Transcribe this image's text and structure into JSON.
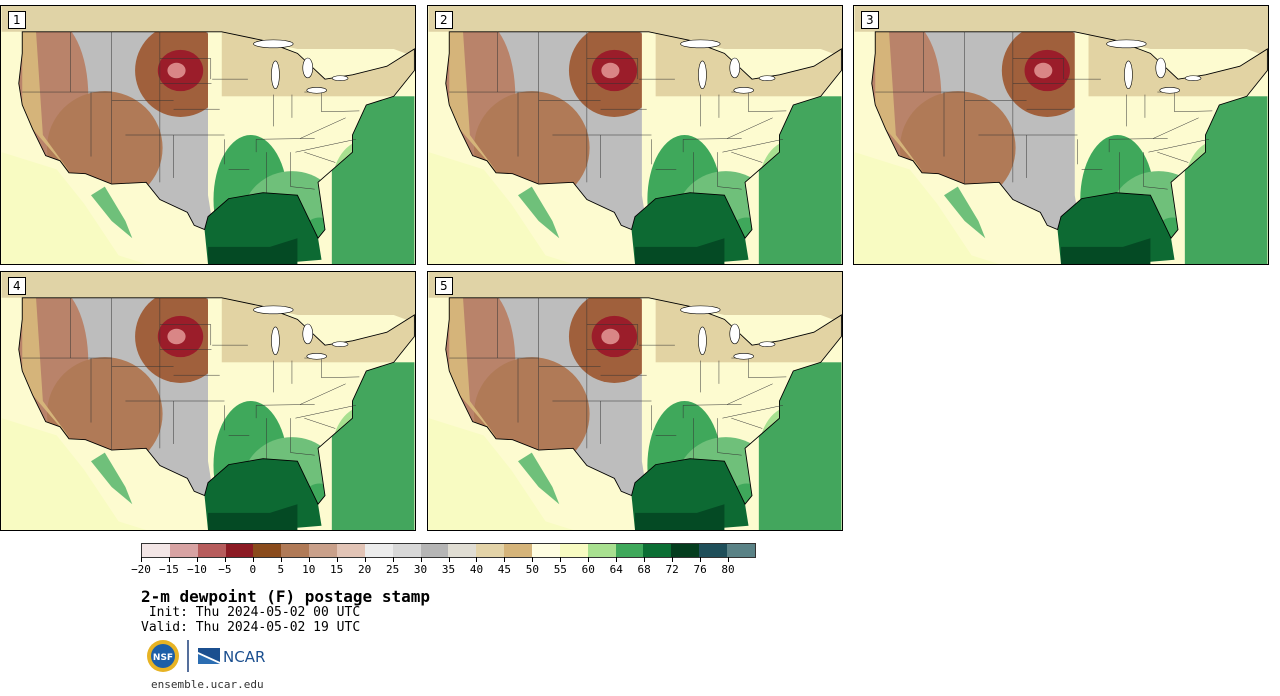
{
  "panels": [
    {
      "label": "1",
      "dry_core_lon": -101,
      "moist_edge_lon": -95
    },
    {
      "label": "2",
      "dry_core_lon": -100,
      "moist_edge_lon": -94
    },
    {
      "label": "3",
      "dry_core_lon": -99,
      "moist_edge_lon": -93
    },
    {
      "label": "4",
      "dry_core_lon": -101,
      "moist_edge_lon": -95
    },
    {
      "label": "5",
      "dry_core_lon": -100,
      "moist_edge_lon": -94
    }
  ],
  "colorbar": {
    "colors": [
      "#f3e6e6",
      "#d8a3a3",
      "#b65c5c",
      "#8c1b24",
      "#8a4b1c",
      "#b07a57",
      "#c9a08a",
      "#e2c4b6",
      "#ececec",
      "#d8d8d8",
      "#b5b5b5",
      "#e0ddd3",
      "#e3d3a8",
      "#d5b47a",
      "#fffde1",
      "#f8fbc2",
      "#a8e090",
      "#3fa85b",
      "#0b6e34",
      "#043d1e",
      "#1f4f5a",
      "#5a8286"
    ],
    "tick_labels": [
      "−20",
      "−15",
      "−10",
      "−5",
      "0",
      "5",
      "10",
      "15",
      "20",
      "25",
      "30",
      "35",
      "40",
      "45",
      "50",
      "55",
      "60",
      "64",
      "68",
      "72",
      "76",
      "80"
    ]
  },
  "title": "2-m dewpoint (F) postage stamp",
  "init": " Init: Thu 2024-05-02 00 UTC",
  "valid": "Valid: Thu 2024-05-02 19 UTC",
  "logos": {
    "nsf": "NSF",
    "ncar": "NCAR"
  },
  "url": "ensemble.ucar.edu"
}
